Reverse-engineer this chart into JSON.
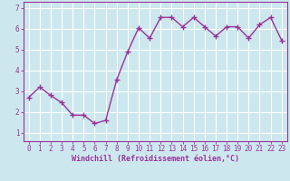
{
  "x": [
    0,
    1,
    2,
    3,
    4,
    5,
    6,
    7,
    8,
    9,
    10,
    11,
    12,
    13,
    14,
    15,
    16,
    17,
    18,
    19,
    20,
    21,
    22,
    23
  ],
  "y": [
    2.7,
    3.2,
    2.8,
    2.45,
    1.85,
    1.85,
    1.45,
    1.6,
    3.55,
    4.9,
    6.05,
    5.55,
    6.55,
    6.55,
    6.1,
    6.55,
    6.1,
    5.65,
    6.1,
    6.1,
    5.55,
    6.2,
    6.55,
    5.45
  ],
  "line_color": "#993399",
  "marker": "+",
  "markersize": 4,
  "linewidth": 1.0,
  "xlabel": "Windchill (Refroidissement éolien,°C)",
  "ylabel": "",
  "bg_color": "#cce8ee",
  "grid_color": "#ffffff",
  "axis_color": "#993399",
  "label_color": "#993399",
  "tick_color": "#993399",
  "xlim": [
    -0.5,
    23.5
  ],
  "ylim": [
    0.6,
    7.3
  ],
  "yticks": [
    1,
    2,
    3,
    4,
    5,
    6,
    7
  ],
  "xticks": [
    0,
    1,
    2,
    3,
    4,
    5,
    6,
    7,
    8,
    9,
    10,
    11,
    12,
    13,
    14,
    15,
    16,
    17,
    18,
    19,
    20,
    21,
    22,
    23
  ],
  "tick_fontsize": 5.5,
  "xlabel_fontsize": 6.0
}
